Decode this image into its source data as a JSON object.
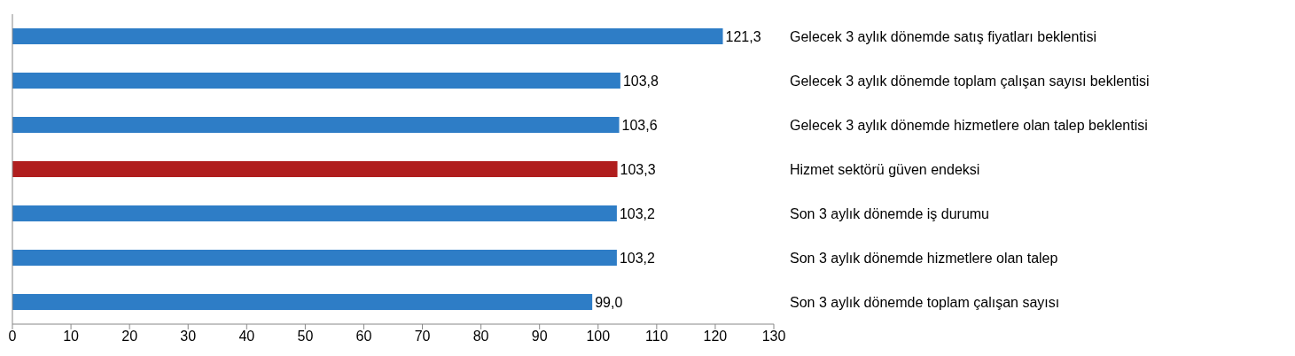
{
  "chart_data": {
    "type": "bar",
    "orientation": "horizontal",
    "categories": [
      "Gelecek 3 aylık dönemde satış fiyatları beklentisi",
      "Gelecek 3 aylık dönemde toplam çalışan sayısı beklentisi",
      "Gelecek 3 aylık dönemde hizmetlere olan talep beklentisi",
      "Hizmet sektörü güven endeksi",
      "Son 3 aylık dönemde iş durumu",
      "Son 3 aylık dönemde hizmetlere olan talep",
      "Son 3 aylık dönemde toplam çalışan sayısı"
    ],
    "values": [
      121.3,
      103.8,
      103.6,
      103.3,
      103.2,
      103.2,
      99.0
    ],
    "value_labels": [
      "121,3",
      "103,8",
      "103,6",
      "103,3",
      "103,2",
      "103,2",
      "99,0"
    ],
    "colors": [
      "#2e7dc6",
      "#2e7dc6",
      "#2e7dc6",
      "#b01e1e",
      "#2e7dc6",
      "#2e7dc6",
      "#2e7dc6"
    ],
    "xlim": [
      0,
      130
    ],
    "xticks": [
      0,
      10,
      20,
      30,
      40,
      50,
      60,
      70,
      80,
      90,
      100,
      110,
      120,
      130
    ],
    "grid": false,
    "legend": false
  }
}
